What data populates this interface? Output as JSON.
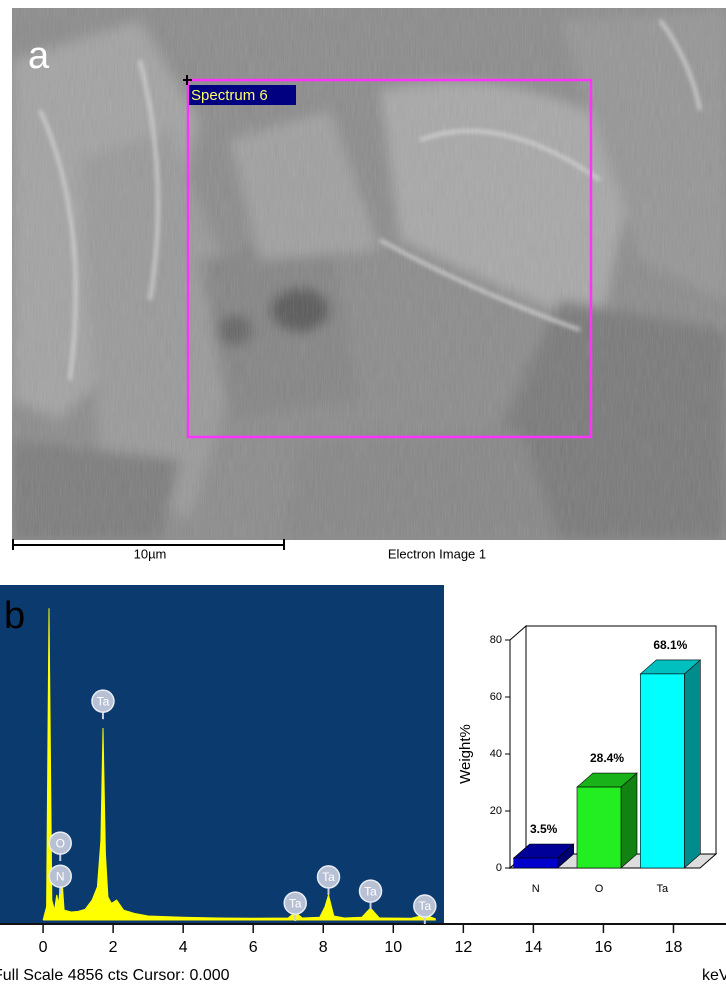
{
  "panel_a": {
    "label": "a",
    "spectrum_label": "Spectrum 6",
    "scale_bar": "10µm",
    "image_caption": "Electron Image 1"
  },
  "chart_data": [
    {
      "type": "area",
      "label": "b",
      "color": "#ffff00",
      "x": [
        0,
        0.1,
        0.17,
        0.25,
        0.33,
        0.39,
        0.45,
        0.52,
        0.6,
        0.8,
        1.0,
        1.2,
        1.4,
        1.55,
        1.65,
        1.71,
        1.78,
        1.85,
        1.95,
        2.1,
        2.3,
        2.6,
        3.0,
        4.0,
        5.0,
        6.0,
        7.0,
        7.2,
        7.4,
        7.9,
        8.05,
        8.15,
        8.3,
        8.6,
        9.1,
        9.35,
        9.6,
        10.5,
        10.9,
        11.2
      ],
      "values": [
        0,
        200,
        4700,
        300,
        150,
        377,
        250,
        754,
        150,
        120,
        130,
        160,
        300,
        500,
        1200,
        2895,
        1000,
        350,
        250,
        300,
        150,
        100,
        60,
        40,
        30,
        25,
        30,
        120,
        30,
        40,
        200,
        377,
        60,
        30,
        40,
        181,
        30,
        25,
        75,
        20
      ],
      "xlim": [
        -1.23,
        19.5
      ],
      "xticks": [
        0,
        2,
        4,
        6,
        8,
        10,
        12,
        14,
        16,
        18
      ],
      "ylim": [
        0,
        4856
      ],
      "annotations": [
        {
          "text": "Ta",
          "x": 1.71,
          "y": 3300
        },
        {
          "text": "O",
          "x": 0.49,
          "y": 1160
        },
        {
          "text": "N",
          "x": 0.49,
          "y": 660
        },
        {
          "text": "Ta",
          "x": 7.2,
          "y": 255
        },
        {
          "text": "Ta",
          "x": 8.15,
          "y": 650
        },
        {
          "text": "Ta",
          "x": 9.35,
          "y": 436
        },
        {
          "text": "Ta",
          "x": 10.9,
          "y": 211
        }
      ],
      "footer": "Full Scale 4856 cts Cursor: 0.000",
      "xlabel": "keV"
    },
    {
      "type": "bar",
      "ylabel": "Weight%",
      "categories": [
        "N",
        "O",
        "Ta"
      ],
      "values": [
        3.5,
        28.4,
        68.1
      ],
      "value_labels": [
        "3.5%",
        "28.4%",
        "68.1%"
      ],
      "colors": [
        "#0000cc",
        "#22ee22",
        "#00ffff"
      ],
      "ylim": [
        0,
        80
      ],
      "yticks": [
        0,
        20,
        40,
        60,
        80
      ]
    }
  ]
}
